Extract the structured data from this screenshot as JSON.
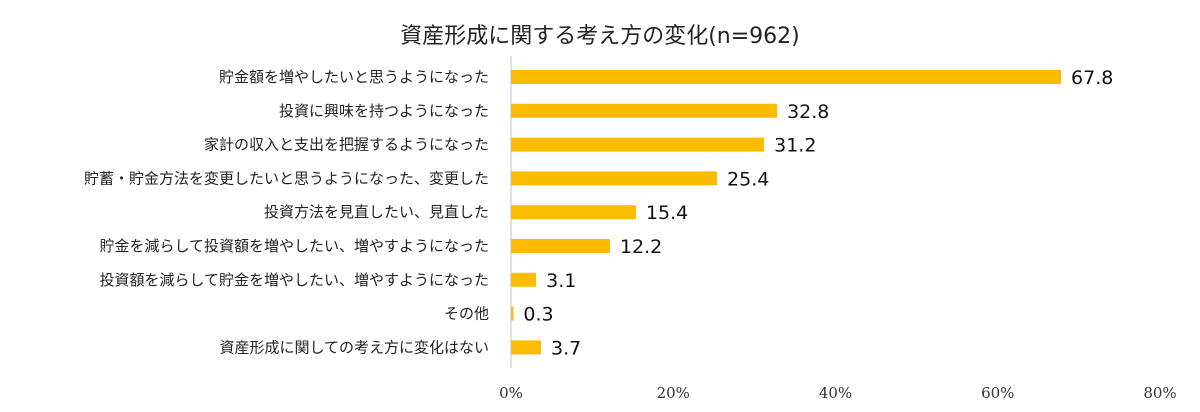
{
  "chart_data": {
    "type": "bar",
    "orientation": "horizontal",
    "title": "資産形成に関する考え方の変化(n=962)",
    "categories": [
      "貯金額を増やしたいと思うようになった",
      "投資に興味を持つようになった",
      "家計の収入と支出を把握するようになった",
      "貯蓄・貯金方法を変更したいと思うようになった、変更した",
      "投資方法を見直したい、見直した",
      "貯金を減らして投資額を増やしたい、増やすようになった",
      "投資額を減らして貯金を増やしたい、増やすようになった",
      "その他",
      "資産形成に関しての考え方に変化はない"
    ],
    "values": [
      67.8,
      32.8,
      31.2,
      25.4,
      15.4,
      12.2,
      3.1,
      0.3,
      3.7
    ],
    "value_labels": [
      "67.8",
      "32.8",
      "31.2",
      "25.4",
      "15.4",
      "12.2",
      "3.1",
      "0.3",
      "3.7"
    ],
    "xlim": [
      0,
      80
    ],
    "xticks": [
      0,
      20,
      40,
      60,
      80
    ],
    "xtick_labels": [
      "0%",
      "20%",
      "40%",
      "60%",
      "80%"
    ],
    "xlabel": "",
    "ylabel": "",
    "grid": false,
    "legend": "none",
    "bar_color": "#FDBB00",
    "axis_color": "#BFBFBF"
  }
}
